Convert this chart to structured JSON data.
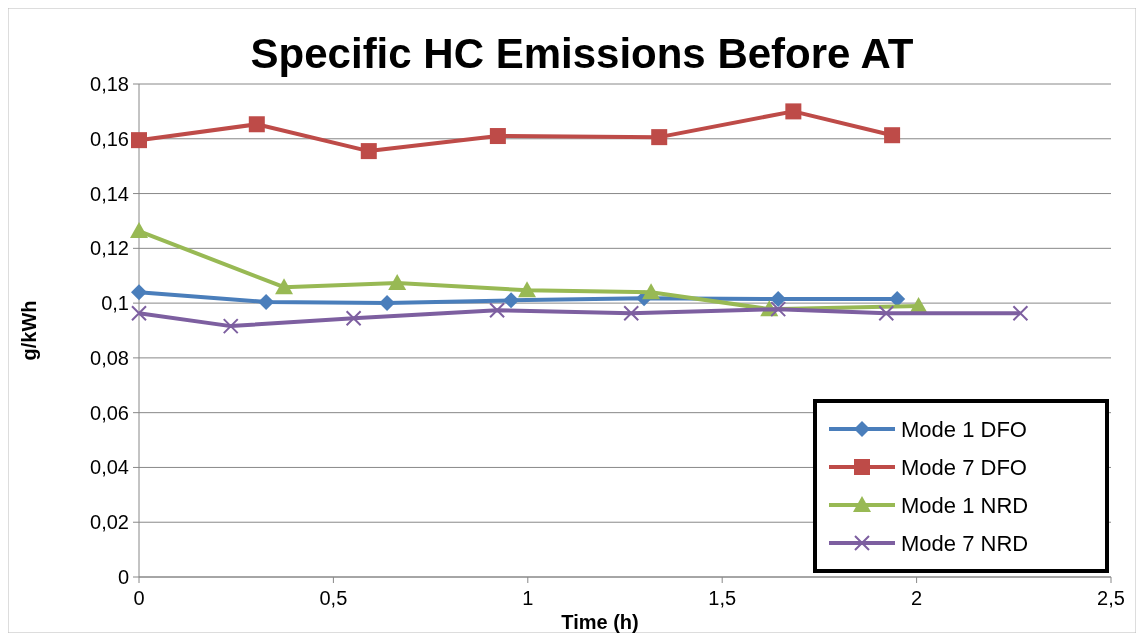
{
  "chart_data": {
    "type": "line",
    "title": "Specific HC Emissions Before AT",
    "xlabel": "Time (h)",
    "ylabel": "g/kWh",
    "xlim": [
      0,
      2.5
    ],
    "xticks": [
      0,
      {
        "value": 0.5,
        "label": "0,5"
      },
      1,
      {
        "value": 1.5,
        "label": "1,5"
      },
      2,
      {
        "value": 2.5,
        "label": "2,5"
      }
    ],
    "ylim": [
      0,
      0.18
    ],
    "yticks": [
      0,
      {
        "value": 0.02,
        "label": "0,02"
      },
      {
        "value": 0.04,
        "label": "0,04"
      },
      {
        "value": 0.06,
        "label": "0,06"
      },
      {
        "value": 0.08,
        "label": "0,08"
      },
      {
        "value": 0.1,
        "label": "0,1"
      },
      {
        "value": 0.12,
        "label": "0,12"
      },
      {
        "value": 0.14,
        "label": "0,14"
      },
      {
        "value": 0.16,
        "label": "0,16"
      },
      {
        "value": 0.18,
        "label": "0,18"
      }
    ],
    "grid": "y",
    "legend": "bottom right",
    "series": [
      {
        "name": "Mode 1 DFO",
        "color": "#4a7ebb",
        "marker": "diamond",
        "x": [
          0,
          0.327,
          0.638,
          0.957,
          1.299,
          1.644,
          1.95
        ],
        "values": [
          0.104,
          0.1004,
          0.1,
          0.101,
          0.1018,
          0.1015,
          0.1015
        ]
      },
      {
        "name": "Mode 7 DFO",
        "color": "#be4b48",
        "marker": "square",
        "x": [
          0,
          0.303,
          0.591,
          0.923,
          1.338,
          1.683,
          1.937
        ],
        "values": [
          0.1595,
          0.1653,
          0.1555,
          0.161,
          0.1606,
          0.17,
          0.1613
        ]
      },
      {
        "name": "Mode 1 NRD",
        "color": "#98b954",
        "marker": "triangle",
        "x": [
          0,
          0.373,
          0.664,
          0.998,
          1.317,
          1.621,
          2.005
        ],
        "values": [
          0.1263,
          0.1058,
          0.1073,
          0.1047,
          0.104,
          0.0978,
          0.0989
        ]
      },
      {
        "name": "Mode 7 NRD",
        "color": "#7d5fa0",
        "marker": "cross",
        "x": [
          0,
          0.236,
          0.552,
          0.921,
          1.266,
          1.644,
          1.922,
          2.267
        ],
        "values": [
          0.0963,
          0.0916,
          0.0945,
          0.0974,
          0.0963,
          0.0978,
          0.0963,
          0.0963
        ]
      }
    ]
  }
}
